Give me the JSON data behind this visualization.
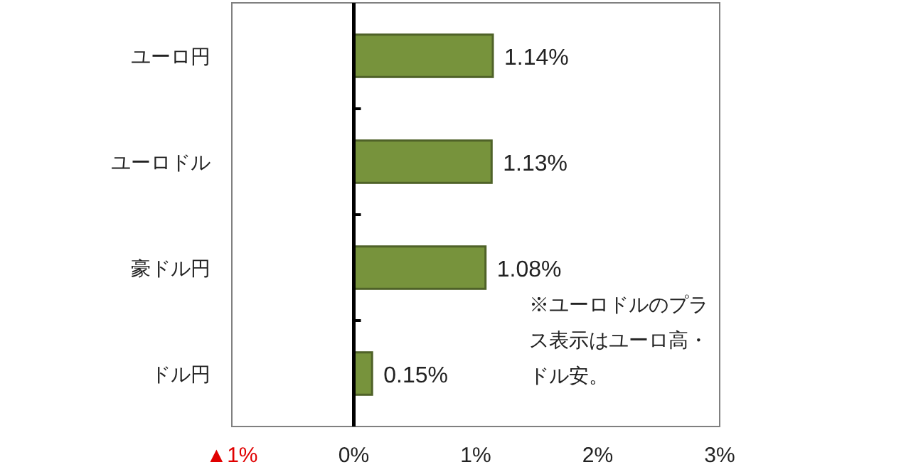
{
  "chart_data": {
    "type": "bar",
    "orientation": "horizontal",
    "categories": [
      "ユーロ円",
      "ユーロドル",
      "豪ドル円",
      "ドル円"
    ],
    "values": [
      1.14,
      1.13,
      1.08,
      0.15
    ],
    "value_labels": [
      "1.14%",
      "1.13%",
      "1.08%",
      "0.15%"
    ],
    "color": "#77933c",
    "xlim": [
      -1,
      3
    ],
    "xticks": [
      {
        "value": -1,
        "label": "▲1%"
      },
      {
        "value": 0,
        "label": "0%"
      },
      {
        "value": 1,
        "label": "1%"
      },
      {
        "value": 2,
        "label": "2%"
      },
      {
        "value": 3,
        "label": "3%"
      }
    ],
    "annotations": [
      "※ユーロドルのプラス表示はユーロ高・ドル安。"
    ]
  }
}
